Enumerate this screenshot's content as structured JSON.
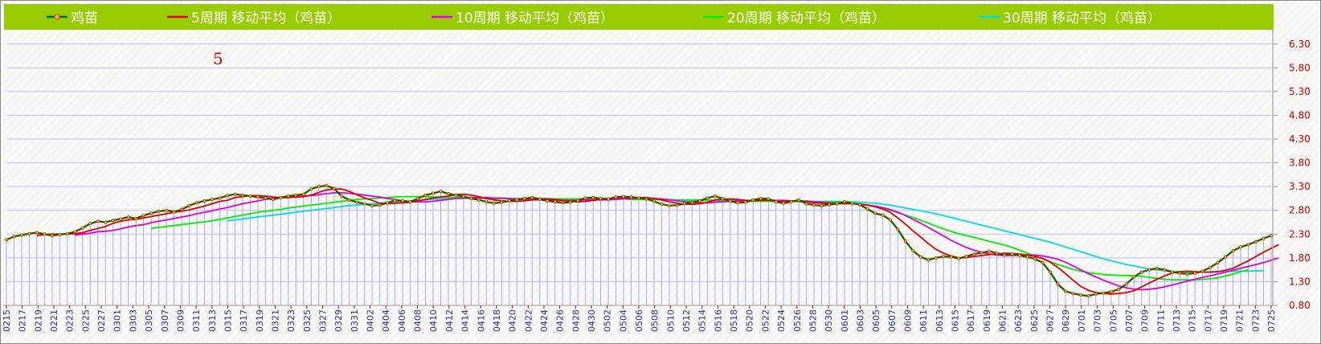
{
  "chart_data": {
    "type": "line",
    "title": "",
    "xlabel": "",
    "ylabel": "",
    "ylim": [
      0.8,
      6.55
    ],
    "yticks": [
      "0.80",
      "1.30",
      "1.80",
      "2.30",
      "2.80",
      "3.30",
      "3.80",
      "4.30",
      "4.80",
      "5.30",
      "5.80",
      "6.30"
    ],
    "annotation": "5",
    "legend_position": "top",
    "colors": {
      "legend_bg": "#99cc00",
      "price": "#006600",
      "price_marker_fill": "#ffd000",
      "price_marker_stroke": "#e02000",
      "ma5": "#dd0000",
      "ma10": "#dd00dd",
      "ma20": "#00ee00",
      "ma30": "#00dddd",
      "bars": "#aaaaee",
      "grid": "#bbbbff",
      "ytick": "#c00000",
      "xtick": "#3030a0"
    },
    "legend": [
      "鸡苗",
      "5周期 移动平均（鸡苗）",
      "10周期 移动平均（鸡苗）",
      "20周期 移动平均（鸡苗）",
      "30周期 移动平均（鸡苗）"
    ],
    "x_labels": [
      "0215",
      "0217",
      "0219",
      "0221",
      "0223",
      "0225",
      "0227",
      "0301",
      "0303",
      "0305",
      "0307",
      "0309",
      "0311",
      "0313",
      "0315",
      "0317",
      "0319",
      "0321",
      "0323",
      "0325",
      "0327",
      "0329",
      "0331",
      "0402",
      "0404",
      "0406",
      "0408",
      "0410",
      "0412",
      "0414",
      "0416",
      "0418",
      "0420",
      "0422",
      "0424",
      "0426",
      "0428",
      "0430",
      "0502",
      "0504",
      "0506",
      "0508",
      "0510",
      "0512",
      "0514",
      "0516",
      "0518",
      "0520",
      "0522",
      "0524",
      "0526",
      "0528",
      "0530",
      "0601",
      "0603",
      "0605",
      "0607",
      "0609",
      "0611",
      "0613",
      "0615",
      "0617",
      "0619",
      "0621",
      "0623",
      "0625",
      "0627",
      "0629",
      "0701",
      "0703",
      "0705",
      "0707",
      "0709",
      "0711",
      "0713",
      "0715",
      "0717",
      "0719",
      "0721",
      "0723",
      "0725"
    ],
    "series": [
      {
        "name": "鸡苗",
        "color": "#006600",
        "values": [
          2.18,
          2.25,
          2.28,
          2.31,
          2.33,
          2.3,
          2.27,
          2.29,
          2.31,
          2.35,
          2.43,
          2.52,
          2.57,
          2.55,
          2.59,
          2.62,
          2.66,
          2.63,
          2.69,
          2.74,
          2.78,
          2.8,
          2.77,
          2.82,
          2.9,
          2.96,
          3.0,
          3.03,
          3.06,
          3.11,
          3.14,
          3.12,
          3.1,
          3.08,
          3.06,
          3.03,
          3.07,
          3.1,
          3.12,
          3.14,
          3.25,
          3.3,
          3.32,
          3.26,
          3.1,
          3.02,
          2.97,
          2.94,
          2.9,
          2.91,
          2.96,
          3.01,
          3.0,
          2.98,
          3.05,
          3.12,
          3.16,
          3.2,
          3.15,
          3.12,
          3.09,
          3.05,
          3.02,
          2.98,
          2.95,
          2.97,
          3.0,
          3.02,
          3.05,
          3.07,
          3.04,
          3.0,
          2.98,
          2.96,
          2.97,
          3.01,
          3.06,
          3.07,
          3.05,
          3.04,
          3.08,
          3.09,
          3.08,
          3.06,
          3.04,
          2.99,
          2.93,
          2.9,
          2.91,
          2.94,
          2.97,
          3.0,
          3.06,
          3.1,
          3.05,
          2.99,
          2.96,
          2.97,
          3.02,
          3.05,
          3.04,
          2.98,
          2.95,
          2.98,
          3.02,
          2.94,
          2.91,
          2.9,
          2.92,
          2.94,
          2.98,
          2.95,
          2.92,
          2.83,
          2.74,
          2.7,
          2.6,
          2.4,
          2.15,
          1.95,
          1.82,
          1.76,
          1.8,
          1.83,
          1.82,
          1.79,
          1.83,
          1.88,
          1.91,
          1.94,
          1.9,
          1.86,
          1.88,
          1.85,
          1.82,
          1.78,
          1.7,
          1.5,
          1.25,
          1.1,
          1.05,
          1.02,
          1.0,
          1.04,
          1.06,
          1.09,
          1.14,
          1.25,
          1.4,
          1.5,
          1.55,
          1.58,
          1.55,
          1.5,
          1.48,
          1.46,
          1.48,
          1.52,
          1.6,
          1.7,
          1.82,
          1.95,
          2.03,
          2.08,
          2.14,
          2.21,
          2.27
        ]
      },
      {
        "name": "5周期 移动平均（鸡苗）",
        "color": "#dd0000",
        "values": [
          null,
          null,
          null,
          null,
          2.27,
          2.29,
          2.3,
          2.3,
          2.3,
          2.31,
          2.33,
          2.38,
          2.42,
          2.46,
          2.53,
          2.57,
          2.6,
          2.61,
          2.64,
          2.67,
          2.7,
          2.73,
          2.76,
          2.78,
          2.81,
          2.85,
          2.89,
          2.94,
          2.99,
          3.01,
          3.07,
          3.09,
          3.11,
          3.11,
          3.1,
          3.08,
          3.07,
          3.07,
          3.08,
          3.09,
          3.12,
          3.18,
          3.23,
          3.25,
          3.25,
          3.2,
          3.13,
          3.06,
          3.01,
          2.95,
          2.94,
          2.95,
          2.96,
          2.97,
          3.0,
          3.03,
          3.06,
          3.08,
          3.1,
          3.13,
          3.14,
          3.12,
          3.09,
          3.05,
          3.02,
          3.0,
          2.99,
          2.99,
          3.0,
          3.02,
          3.04,
          3.04,
          3.03,
          3.01,
          2.99,
          2.98,
          2.99,
          3.01,
          3.03,
          3.05,
          3.06,
          3.07,
          3.07,
          3.07,
          3.07,
          3.05,
          3.02,
          2.98,
          2.95,
          2.93,
          2.93,
          2.94,
          2.97,
          3.02,
          3.04,
          3.04,
          3.03,
          3.01,
          3.0,
          3.01,
          3.01,
          2.99,
          2.99,
          3.0,
          3.0,
          2.98,
          2.96,
          2.95,
          2.94,
          2.94,
          2.94,
          2.94,
          2.93,
          2.91,
          2.88,
          2.83,
          2.76,
          2.64,
          2.51,
          2.37,
          2.24,
          2.1,
          1.98,
          1.9,
          1.84,
          1.8,
          1.81,
          1.83,
          1.85,
          1.87,
          1.88,
          1.9,
          1.89,
          1.88,
          1.86,
          1.83,
          1.79,
          1.71,
          1.6,
          1.47,
          1.33,
          1.2,
          1.12,
          1.07,
          1.05,
          1.04,
          1.05,
          1.07,
          1.11,
          1.19,
          1.27,
          1.35,
          1.42,
          1.48,
          1.51,
          1.52,
          1.51,
          1.5,
          1.5,
          1.51,
          1.54,
          1.58,
          1.66,
          1.74,
          1.83,
          1.92,
          2.0,
          2.08
        ]
      },
      {
        "name": "10周期 移动平均（鸡苗）",
        "color": "#dd00dd",
        "values": [
          null,
          null,
          null,
          null,
          null,
          null,
          null,
          null,
          null,
          2.28,
          2.3,
          2.32,
          2.35,
          2.36,
          2.38,
          2.41,
          2.45,
          2.48,
          2.5,
          2.54,
          2.57,
          2.6,
          2.63,
          2.66,
          2.69,
          2.73,
          2.76,
          2.79,
          2.83,
          2.86,
          2.9,
          2.94,
          2.97,
          3.0,
          3.03,
          3.05,
          3.07,
          3.09,
          3.09,
          3.1,
          3.11,
          3.13,
          3.15,
          3.17,
          3.17,
          3.16,
          3.14,
          3.12,
          3.1,
          3.08,
          3.05,
          3.03,
          3.0,
          2.98,
          2.98,
          2.98,
          2.99,
          3.01,
          3.03,
          3.05,
          3.06,
          3.07,
          3.07,
          3.07,
          3.06,
          3.06,
          3.05,
          3.04,
          3.03,
          3.02,
          3.02,
          3.01,
          3.01,
          3.01,
          3.01,
          3.01,
          3.02,
          3.02,
          3.02,
          3.02,
          3.03,
          3.04,
          3.05,
          3.06,
          3.06,
          3.05,
          3.04,
          3.02,
          3.0,
          2.98,
          2.97,
          2.96,
          2.96,
          2.97,
          2.98,
          2.99,
          3.0,
          3.0,
          3.01,
          3.02,
          3.02,
          3.01,
          3.01,
          3.0,
          3.0,
          2.99,
          2.98,
          2.97,
          2.96,
          2.95,
          2.95,
          2.94,
          2.93,
          2.91,
          2.89,
          2.86,
          2.82,
          2.76,
          2.69,
          2.61,
          2.53,
          2.44,
          2.35,
          2.26,
          2.17,
          2.09,
          2.02,
          1.96,
          1.92,
          1.88,
          1.86,
          1.85,
          1.85,
          1.86,
          1.86,
          1.86,
          1.84,
          1.81,
          1.77,
          1.71,
          1.63,
          1.55,
          1.47,
          1.4,
          1.33,
          1.27,
          1.21,
          1.17,
          1.14,
          1.13,
          1.14,
          1.16,
          1.19,
          1.23,
          1.27,
          1.31,
          1.35,
          1.39,
          1.42,
          1.46,
          1.5,
          1.54,
          1.58,
          1.62,
          1.66,
          1.7,
          1.75,
          1.8
        ]
      },
      {
        "name": "20周期 移动平均（鸡苗）",
        "color": "#00ee00",
        "values": [
          null,
          null,
          null,
          null,
          null,
          null,
          null,
          null,
          null,
          null,
          null,
          null,
          null,
          null,
          null,
          null,
          null,
          null,
          null,
          2.42,
          2.44,
          2.46,
          2.48,
          2.5,
          2.52,
          2.54,
          2.56,
          2.58,
          2.61,
          2.64,
          2.67,
          2.7,
          2.73,
          2.76,
          2.78,
          2.8,
          2.82,
          2.85,
          2.87,
          2.89,
          2.91,
          2.93,
          2.95,
          2.97,
          2.99,
          3.01,
          3.03,
          3.04,
          3.05,
          3.06,
          3.07,
          3.08,
          3.09,
          3.09,
          3.09,
          3.09,
          3.08,
          3.08,
          3.07,
          3.07,
          3.07,
          3.07,
          3.06,
          3.06,
          3.05,
          3.05,
          3.04,
          3.04,
          3.04,
          3.04,
          3.04,
          3.04,
          3.04,
          3.04,
          3.04,
          3.04,
          3.04,
          3.04,
          3.04,
          3.04,
          3.04,
          3.04,
          3.03,
          3.03,
          3.03,
          3.03,
          3.02,
          3.02,
          3.01,
          3.01,
          3.01,
          3.01,
          3.01,
          3.0,
          3.0,
          3.0,
          3.0,
          2.99,
          2.99,
          2.99,
          2.99,
          2.99,
          2.99,
          2.99,
          2.98,
          2.98,
          2.98,
          2.98,
          2.98,
          2.97,
          2.96,
          2.95,
          2.93,
          2.91,
          2.88,
          2.84,
          2.8,
          2.75,
          2.7,
          2.65,
          2.59,
          2.53,
          2.47,
          2.41,
          2.36,
          2.31,
          2.27,
          2.23,
          2.19,
          2.15,
          2.11,
          2.07,
          2.02,
          1.96,
          1.9,
          1.84,
          1.78,
          1.72,
          1.66,
          1.61,
          1.56,
          1.52,
          1.49,
          1.47,
          1.45,
          1.44,
          1.43,
          1.43,
          1.42,
          1.41,
          1.39,
          1.37,
          1.35,
          1.34,
          1.34,
          1.34,
          1.34,
          1.35,
          1.36,
          1.38,
          1.42,
          1.46,
          1.51,
          1.55
        ]
      },
      {
        "name": "30周期 移动平均（鸡苗）",
        "color": "#00dddd",
        "values": [
          null,
          null,
          null,
          null,
          null,
          null,
          null,
          null,
          null,
          null,
          null,
          null,
          null,
          null,
          null,
          null,
          null,
          null,
          null,
          null,
          null,
          null,
          null,
          null,
          null,
          null,
          null,
          null,
          null,
          2.58,
          2.6,
          2.62,
          2.64,
          2.66,
          2.68,
          2.7,
          2.72,
          2.74,
          2.76,
          2.78,
          2.8,
          2.82,
          2.84,
          2.86,
          2.88,
          2.9,
          2.91,
          2.93,
          2.94,
          2.95,
          2.97,
          2.98,
          2.99,
          3.0,
          3.01,
          3.02,
          3.03,
          3.04,
          3.04,
          3.05,
          3.05,
          3.05,
          3.05,
          3.05,
          3.05,
          3.05,
          3.05,
          3.05,
          3.05,
          3.05,
          3.05,
          3.05,
          3.04,
          3.04,
          3.04,
          3.04,
          3.04,
          3.04,
          3.04,
          3.04,
          3.04,
          3.04,
          3.03,
          3.03,
          3.03,
          3.03,
          3.03,
          3.03,
          3.02,
          3.02,
          3.02,
          3.02,
          3.02,
          3.01,
          3.01,
          3.01,
          3.01,
          3.01,
          3.01,
          3.0,
          3.0,
          3.0,
          3.0,
          3.0,
          3.0,
          3.0,
          2.99,
          2.99,
          2.99,
          2.99,
          2.98,
          2.98,
          2.97,
          2.96,
          2.95,
          2.93,
          2.91,
          2.88,
          2.85,
          2.82,
          2.79,
          2.76,
          2.73,
          2.69,
          2.65,
          2.61,
          2.57,
          2.53,
          2.49,
          2.45,
          2.41,
          2.37,
          2.33,
          2.29,
          2.25,
          2.21,
          2.17,
          2.13,
          2.08,
          2.03,
          1.98,
          1.93,
          1.88,
          1.83,
          1.78,
          1.74,
          1.7,
          1.66,
          1.63,
          1.6,
          1.57,
          1.55,
          1.53,
          1.52,
          1.51,
          1.5,
          1.5,
          1.5,
          1.51,
          1.51,
          1.51,
          1.52,
          1.52,
          1.52,
          1.53,
          1.53
        ]
      }
    ]
  }
}
